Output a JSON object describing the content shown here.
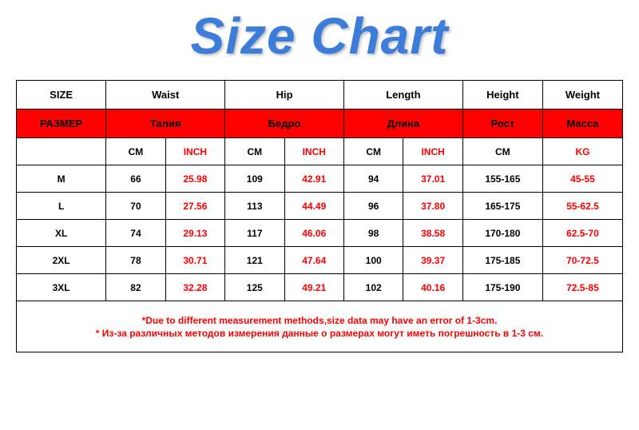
{
  "title": "Size Chart",
  "table": {
    "type": "table",
    "header_en": [
      "SIZE",
      "Waist",
      "Hip",
      "Length",
      "Height",
      "Weight"
    ],
    "header_ru": [
      "РАЗМЕР",
      "Талия",
      "Бедро",
      "Длина",
      "Рост",
      "Масса"
    ],
    "units": {
      "cm": "CM",
      "inch": "INCH",
      "kg": "KG"
    },
    "rows": [
      {
        "size": "M",
        "waist_cm": "66",
        "waist_in": "25.98",
        "hip_cm": "109",
        "hip_in": "42.91",
        "len_cm": "94",
        "len_in": "37.01",
        "height": "155-165",
        "weight": "45-55"
      },
      {
        "size": "L",
        "waist_cm": "70",
        "waist_in": "27.56",
        "hip_cm": "113",
        "hip_in": "44.49",
        "len_cm": "96",
        "len_in": "37.80",
        "height": "165-175",
        "weight": "55-62.5"
      },
      {
        "size": "XL",
        "waist_cm": "74",
        "waist_in": "29.13",
        "hip_cm": "117",
        "hip_in": "46.06",
        "len_cm": "98",
        "len_in": "38.58",
        "height": "170-180",
        "weight": "62.5-70"
      },
      {
        "size": "2XL",
        "waist_cm": "78",
        "waist_in": "30.71",
        "hip_cm": "121",
        "hip_in": "47.64",
        "len_cm": "100",
        "len_in": "39.37",
        "height": "175-185",
        "weight": "70-72.5"
      },
      {
        "size": "3XL",
        "waist_cm": "82",
        "waist_in": "32.28",
        "hip_cm": "125",
        "hip_in": "49.21",
        "len_cm": "102",
        "len_in": "40.16",
        "height": "175-190",
        "weight": "72.5-85"
      }
    ],
    "footnotes": [
      "*Due to different measurement methods,size data may have an error of 1-3cm.",
      "* Из-за различных методов измерения данные о размерах могут иметь погрешность в 1-3 см."
    ],
    "colors": {
      "header_ru_bg": "#ff0000",
      "accent_text": "#ff0000",
      "title_color": "#3b7dd8",
      "border": "#000000",
      "background": "#ffffff"
    },
    "font_sizes": {
      "title": 64,
      "header": 13,
      "cell": 12,
      "footnote": 12
    }
  }
}
